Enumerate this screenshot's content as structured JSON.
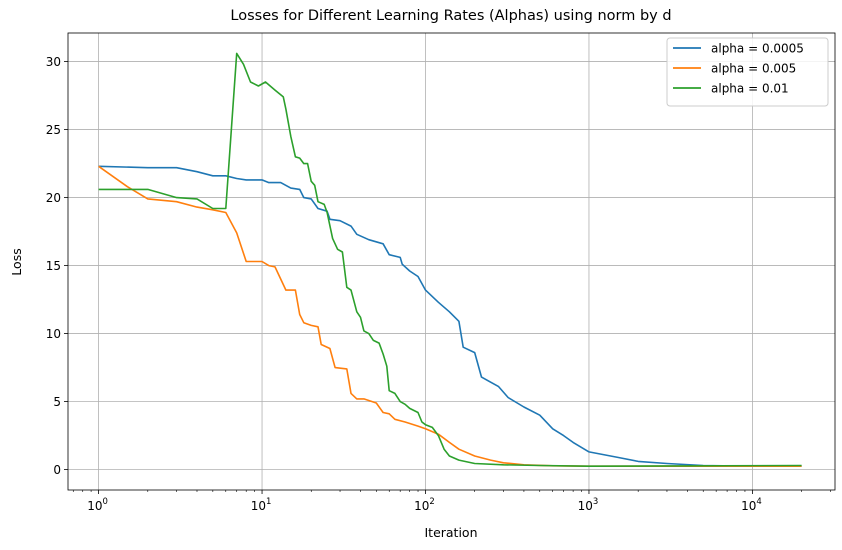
{
  "chart_data": {
    "type": "line",
    "title": "Losses for Different Learning Rates (Alphas) using norm by d",
    "xlabel": "Iteration",
    "ylabel": "Loss",
    "xscale": "log",
    "xlim": [
      0.65,
      32000
    ],
    "ylim": [
      -1.5,
      32.1
    ],
    "grid": true,
    "legend_position": "top-right",
    "x_ticks": [
      {
        "value": 1,
        "base": "10",
        "exp": "0"
      },
      {
        "value": 10,
        "base": "10",
        "exp": "1"
      },
      {
        "value": 100,
        "base": "10",
        "exp": "2"
      },
      {
        "value": 1000,
        "base": "10",
        "exp": "3"
      },
      {
        "value": 10000,
        "base": "10",
        "exp": "4"
      }
    ],
    "y_ticks": [
      {
        "value": 0,
        "label": "0"
      },
      {
        "value": 5,
        "label": "5"
      },
      {
        "value": 10,
        "label": "10"
      },
      {
        "value": 15,
        "label": "15"
      },
      {
        "value": 20,
        "label": "20"
      },
      {
        "value": 25,
        "label": "25"
      },
      {
        "value": 30,
        "label": "30"
      }
    ],
    "series": [
      {
        "name": "alpha = 0.0005",
        "color": "#1f77b4",
        "points": [
          [
            1,
            22.3
          ],
          [
            2,
            22.2
          ],
          [
            3,
            22.2
          ],
          [
            4,
            21.9
          ],
          [
            5,
            21.6
          ],
          [
            6,
            21.6
          ],
          [
            7,
            21.4
          ],
          [
            8,
            21.3
          ],
          [
            10,
            21.3
          ],
          [
            11,
            21.1
          ],
          [
            13,
            21.1
          ],
          [
            15,
            20.7
          ],
          [
            17,
            20.6
          ],
          [
            18,
            20.0
          ],
          [
            20,
            19.9
          ],
          [
            22,
            19.2
          ],
          [
            25,
            19.0
          ],
          [
            26,
            18.4
          ],
          [
            30,
            18.3
          ],
          [
            35,
            17.9
          ],
          [
            38,
            17.3
          ],
          [
            45,
            16.9
          ],
          [
            55,
            16.6
          ],
          [
            60,
            15.8
          ],
          [
            70,
            15.6
          ],
          [
            72,
            15.1
          ],
          [
            80,
            14.6
          ],
          [
            90,
            14.2
          ],
          [
            100,
            13.2
          ],
          [
            120,
            12.3
          ],
          [
            140,
            11.6
          ],
          [
            160,
            10.9
          ],
          [
            170,
            9.0
          ],
          [
            200,
            8.6
          ],
          [
            220,
            6.8
          ],
          [
            280,
            6.1
          ],
          [
            320,
            5.3
          ],
          [
            400,
            4.6
          ],
          [
            500,
            4.0
          ],
          [
            600,
            3.0
          ],
          [
            700,
            2.5
          ],
          [
            800,
            2.0
          ],
          [
            1000,
            1.3
          ],
          [
            1500,
            0.9
          ],
          [
            2000,
            0.6
          ],
          [
            3000,
            0.45
          ],
          [
            5000,
            0.3
          ],
          [
            10000,
            0.25
          ],
          [
            20000,
            0.25
          ]
        ]
      },
      {
        "name": "alpha = 0.005",
        "color": "#ff7f0e",
        "points": [
          [
            1,
            22.3
          ],
          [
            1.5,
            20.8
          ],
          [
            2,
            19.9
          ],
          [
            3,
            19.7
          ],
          [
            4,
            19.3
          ],
          [
            5,
            19.1
          ],
          [
            6,
            18.9
          ],
          [
            7,
            17.4
          ],
          [
            8,
            15.3
          ],
          [
            10,
            15.3
          ],
          [
            11,
            15.0
          ],
          [
            12,
            14.9
          ],
          [
            14,
            13.2
          ],
          [
            16,
            13.2
          ],
          [
            17,
            11.4
          ],
          [
            18,
            10.8
          ],
          [
            20,
            10.6
          ],
          [
            22,
            10.5
          ],
          [
            23,
            9.2
          ],
          [
            26,
            8.9
          ],
          [
            28,
            7.5
          ],
          [
            33,
            7.4
          ],
          [
            35,
            5.6
          ],
          [
            38,
            5.2
          ],
          [
            42,
            5.2
          ],
          [
            50,
            4.9
          ],
          [
            55,
            4.2
          ],
          [
            60,
            4.1
          ],
          [
            65,
            3.7
          ],
          [
            75,
            3.5
          ],
          [
            90,
            3.2
          ],
          [
            100,
            3.0
          ],
          [
            120,
            2.6
          ],
          [
            140,
            2.0
          ],
          [
            160,
            1.5
          ],
          [
            200,
            1.0
          ],
          [
            250,
            0.7
          ],
          [
            300,
            0.5
          ],
          [
            400,
            0.35
          ],
          [
            600,
            0.28
          ],
          [
            1000,
            0.25
          ],
          [
            20000,
            0.25
          ]
        ]
      },
      {
        "name": "alpha = 0.01",
        "color": "#2ca02c",
        "points": [
          [
            1,
            20.6
          ],
          [
            2,
            20.6
          ],
          [
            3,
            20.0
          ],
          [
            4,
            19.9
          ],
          [
            5,
            19.2
          ],
          [
            6,
            19.2
          ],
          [
            7,
            30.6
          ],
          [
            7.7,
            29.8
          ],
          [
            8.5,
            28.5
          ],
          [
            9.5,
            28.2
          ],
          [
            10.5,
            28.5
          ],
          [
            12,
            27.9
          ],
          [
            13.5,
            27.4
          ],
          [
            14,
            26.5
          ],
          [
            15,
            24.5
          ],
          [
            16,
            23.0
          ],
          [
            17,
            22.9
          ],
          [
            18,
            22.5
          ],
          [
            19,
            22.5
          ],
          [
            20,
            21.2
          ],
          [
            21,
            20.9
          ],
          [
            22,
            19.7
          ],
          [
            24,
            19.5
          ],
          [
            25,
            18.9
          ],
          [
            27,
            17.0
          ],
          [
            29,
            16.2
          ],
          [
            31,
            16.0
          ],
          [
            33,
            13.4
          ],
          [
            35,
            13.2
          ],
          [
            38,
            11.6
          ],
          [
            40,
            11.2
          ],
          [
            42,
            10.2
          ],
          [
            45,
            10.0
          ],
          [
            48,
            9.5
          ],
          [
            52,
            9.3
          ],
          [
            55,
            8.5
          ],
          [
            58,
            7.6
          ],
          [
            60,
            5.8
          ],
          [
            65,
            5.6
          ],
          [
            70,
            5.0
          ],
          [
            75,
            4.8
          ],
          [
            80,
            4.5
          ],
          [
            90,
            4.2
          ],
          [
            95,
            3.5
          ],
          [
            100,
            3.3
          ],
          [
            110,
            3.1
          ],
          [
            120,
            2.5
          ],
          [
            130,
            1.5
          ],
          [
            140,
            1.0
          ],
          [
            160,
            0.7
          ],
          [
            200,
            0.45
          ],
          [
            300,
            0.35
          ],
          [
            500,
            0.3
          ],
          [
            1000,
            0.25
          ],
          [
            20000,
            0.3
          ]
        ]
      }
    ]
  }
}
